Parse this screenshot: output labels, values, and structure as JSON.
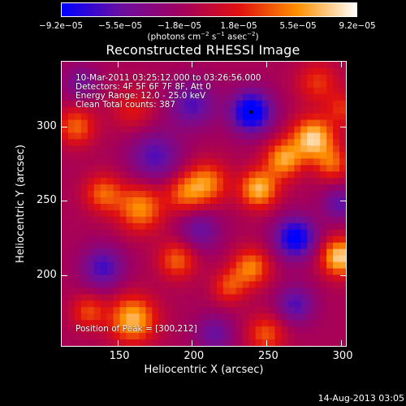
{
  "colorbar": {
    "ticks": [
      "−9.2e−05",
      "−5.5e−05",
      "−1.8e−05",
      "1.8e−05",
      "5.5e−05",
      "9.2e−05"
    ],
    "units_prefix": "(photons cm",
    "units_exp1": "−2",
    "units_mid": " s",
    "units_exp2": "−1",
    "units_mid2": " asec",
    "units_exp3": "−2",
    "units_suffix": ")",
    "range": [
      -9.2e-05,
      9.2e-05
    ],
    "colors": [
      "#0000ff",
      "#6a0fa0",
      "#a00060",
      "#e01010",
      "#ff9000",
      "#ffffff"
    ]
  },
  "chart_data": {
    "type": "heatmap",
    "title": "Reconstructed RHESSI Image",
    "xlabel": "Heliocentric X (arcsec)",
    "ylabel": "Heliocentric Y (arcsec)",
    "xlim": [
      112,
      304
    ],
    "ylim": [
      152,
      344
    ],
    "xticks": [
      150,
      200,
      250,
      300
    ],
    "yticks": [
      200,
      250,
      300
    ],
    "annotations": [
      "10-Mar-2011 03:25:12.000 to 03:26:56.000",
      "Detectors: 4F 5F 6F 7F 8F, Att 0",
      "Energy Range: 12.0 - 25.0 keV",
      "Clean    Total counts: 387",
      "Position of Peak = [300,212]"
    ],
    "blobs": [
      {
        "x": 140,
        "y": 255,
        "a": 0.6,
        "s": 9
      },
      {
        "x": 165,
        "y": 245,
        "a": 0.75,
        "s": 11
      },
      {
        "x": 195,
        "y": 255,
        "a": 0.55,
        "s": 9
      },
      {
        "x": 210,
        "y": 262,
        "a": 0.7,
        "s": 10
      },
      {
        "x": 245,
        "y": 258,
        "a": 0.9,
        "s": 9
      },
      {
        "x": 262,
        "y": 278,
        "a": 0.8,
        "s": 9
      },
      {
        "x": 282,
        "y": 292,
        "a": 1.0,
        "s": 10
      },
      {
        "x": 295,
        "y": 275,
        "a": 0.55,
        "s": 8
      },
      {
        "x": 300,
        "y": 212,
        "a": 1.0,
        "s": 9
      },
      {
        "x": 240,
        "y": 205,
        "a": 0.7,
        "s": 9
      },
      {
        "x": 225,
        "y": 192,
        "a": 0.5,
        "s": 8
      },
      {
        "x": 190,
        "y": 210,
        "a": 0.6,
        "s": 9
      },
      {
        "x": 160,
        "y": 170,
        "a": 0.9,
        "s": 11
      },
      {
        "x": 130,
        "y": 175,
        "a": 0.5,
        "s": 8
      },
      {
        "x": 250,
        "y": 160,
        "a": 0.55,
        "s": 9
      },
      {
        "x": 122,
        "y": 300,
        "a": 0.6,
        "s": 9
      },
      {
        "x": 160,
        "y": 312,
        "a": 0.35,
        "s": 10
      },
      {
        "x": 285,
        "y": 330,
        "a": 0.45,
        "s": 10
      },
      {
        "x": 302,
        "y": 312,
        "a": 0.4,
        "s": 8
      },
      {
        "x": 240,
        "y": 310,
        "a": -1.0,
        "s": 10
      },
      {
        "x": 270,
        "y": 225,
        "a": -0.9,
        "s": 10
      },
      {
        "x": 300,
        "y": 248,
        "a": -0.5,
        "s": 8
      },
      {
        "x": 175,
        "y": 280,
        "a": -0.55,
        "s": 12
      },
      {
        "x": 140,
        "y": 205,
        "a": -0.6,
        "s": 10
      },
      {
        "x": 205,
        "y": 230,
        "a": -0.45,
        "s": 10
      },
      {
        "x": 200,
        "y": 315,
        "a": -0.55,
        "s": 11
      },
      {
        "x": 270,
        "y": 180,
        "a": -0.55,
        "s": 9
      },
      {
        "x": 215,
        "y": 160,
        "a": -0.45,
        "s": 9
      },
      {
        "x": 125,
        "y": 330,
        "a": -0.4,
        "s": 8
      }
    ]
  },
  "footer": {
    "date": "14-Aug-2013 03:05"
  }
}
